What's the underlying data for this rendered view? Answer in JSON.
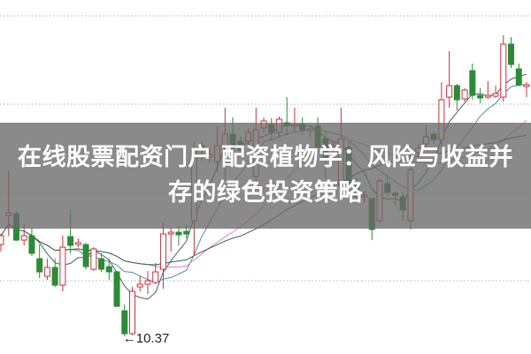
{
  "title": "在线股票配资门户 配资植物学：风险与收益并存的绿色投资策略",
  "colors": {
    "up": "#c8303a",
    "down": "#2d8a36",
    "grid": "#b0b0b0",
    "ma": [
      "#555a66",
      "#4f8fa0",
      "#e07ad0",
      "#2f6b3a"
    ],
    "banner": "#696969"
  },
  "chart_data": {
    "type": "candlestick",
    "ylim": [
      10.17,
      14.18
    ],
    "grid": true,
    "gridlines": [
      11,
      12,
      13,
      14
    ],
    "annotation": {
      "label": "10.37",
      "value": 10.37,
      "candle": 17
    },
    "moving_averages": [
      5,
      10,
      20,
      30
    ],
    "candles": [
      [
        11.41,
        11.51,
        11.53,
        11.33
      ],
      [
        11.74,
        11.77,
        12.25,
        11.51
      ],
      [
        11.76,
        11.46,
        11.78,
        11.45
      ],
      [
        11.46,
        11.51,
        11.65,
        11.4
      ],
      [
        11.51,
        11.31,
        11.6,
        11.28
      ],
      [
        11.25,
        11.1,
        11.41,
        11.03
      ],
      [
        11.05,
        11.15,
        11.25,
        11.01
      ],
      [
        11.15,
        10.95,
        11.25,
        10.93
      ],
      [
        10.95,
        11.38,
        11.51,
        10.88
      ],
      [
        11.5,
        11.4,
        11.81,
        11.31
      ],
      [
        11.41,
        11.43,
        11.48,
        11.38
      ],
      [
        11.41,
        11.16,
        11.43,
        11.13
      ],
      [
        11.13,
        11.36,
        11.38,
        11.11
      ],
      [
        11.25,
        11.13,
        11.31,
        11.1
      ],
      [
        11.16,
        11.1,
        11.25,
        11.01
      ],
      [
        11.1,
        10.71,
        11.11,
        10.7
      ],
      [
        10.66,
        10.4,
        10.73,
        10.37
      ],
      [
        10.4,
        10.88,
        10.93,
        10.38
      ],
      [
        10.93,
        10.96,
        11.05,
        10.88
      ],
      [
        10.96,
        11.0,
        11.11,
        10.85
      ],
      [
        10.98,
        11.1,
        11.2,
        10.96
      ],
      [
        11.13,
        11.53,
        11.66,
        10.91
      ],
      [
        11.53,
        11.55,
        11.6,
        11.33
      ],
      [
        11.55,
        11.52,
        11.62,
        11.4
      ],
      [
        11.56,
        11.53,
        11.63,
        11.48
      ],
      [
        11.68,
        12.48,
        12.58,
        11.28
      ],
      [
        12.53,
        12.48,
        12.58,
        12.36
      ],
      [
        12.4,
        12.43,
        12.5,
        12.33
      ],
      [
        12.35,
        12.53,
        12.75,
        12.23
      ],
      [
        12.53,
        12.66,
        12.96,
        12.13
      ],
      [
        12.66,
        12.5,
        12.85,
        12.46
      ],
      [
        12.58,
        12.48,
        12.63,
        12.43
      ],
      [
        12.58,
        12.68,
        12.73,
        12.5
      ],
      [
        12.18,
        12.71,
        12.96,
        12.08
      ],
      [
        12.73,
        12.81,
        12.85,
        12.68
      ],
      [
        12.77,
        12.68,
        12.84,
        12.6
      ],
      [
        12.68,
        12.83,
        12.86,
        12.63
      ],
      [
        12.79,
        12.76,
        13.08,
        12.65
      ],
      [
        12.75,
        12.77,
        12.96,
        12.7
      ],
      [
        12.77,
        12.71,
        12.85,
        12.66
      ],
      [
        12.7,
        12.72,
        12.76,
        12.63
      ],
      [
        12.75,
        12.51,
        12.85,
        12.5
      ],
      [
        12.61,
        12.4,
        12.7,
        12.15
      ],
      [
        12.5,
        12.53,
        12.58,
        12.43
      ],
      [
        12.08,
        12.61,
        12.96,
        12.06
      ],
      [
        12.51,
        12.1,
        12.58,
        12.03
      ],
      [
        12.08,
        11.95,
        12.16,
        11.9
      ],
      [
        11.95,
        11.97,
        12.01,
        11.88
      ],
      [
        11.93,
        11.58,
        11.93,
        11.46
      ],
      [
        11.68,
        12.13,
        12.16,
        11.65
      ],
      [
        12.1,
        12.0,
        12.2,
        11.96
      ],
      [
        11.99,
        11.97,
        12.01,
        11.85
      ],
      [
        11.95,
        11.8,
        12.0,
        11.68
      ],
      [
        11.68,
        12.26,
        12.53,
        11.58
      ],
      [
        12.45,
        12.5,
        12.55,
        12.4
      ],
      [
        12.55,
        12.63,
        12.76,
        12.51
      ],
      [
        12.66,
        12.6,
        12.7,
        12.55
      ],
      [
        12.6,
        13.05,
        13.25,
        12.51
      ],
      [
        13.08,
        13.21,
        13.6,
        12.96
      ],
      [
        13.21,
        13.05,
        13.23,
        12.93
      ],
      [
        13.06,
        13.16,
        13.18,
        13.03
      ],
      [
        13.38,
        13.1,
        13.46,
        13.05
      ],
      [
        13.1,
        13.07,
        13.18,
        13.01
      ],
      [
        13.08,
        13.1,
        13.26,
        13.06
      ],
      [
        13.09,
        13.12,
        13.21,
        13.07
      ],
      [
        13.08,
        13.68,
        13.78,
        13.03
      ],
      [
        13.68,
        13.45,
        13.76,
        13.41
      ],
      [
        13.4,
        13.22,
        13.46,
        13.2
      ],
      [
        13.2,
        13.22,
        13.25,
        13.08
      ]
    ]
  }
}
